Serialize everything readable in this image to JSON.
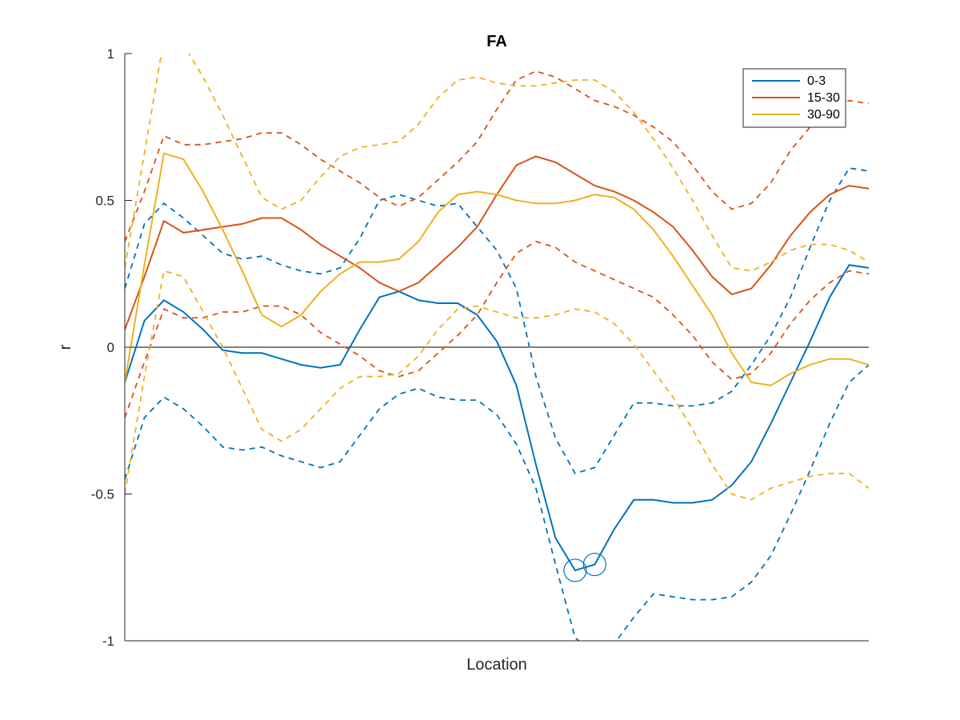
{
  "chart_data": {
    "type": "line",
    "title": "FA",
    "xlabel": "Location",
    "ylabel": "r",
    "ylim": [
      -1,
      1
    ],
    "yticks": [
      -1,
      -0.5,
      0,
      0.5,
      1
    ],
    "ytick_labels": [
      "-1",
      "-0.5",
      "0",
      "0.5",
      "1"
    ],
    "xlim": [
      1,
      39
    ],
    "show_xticks": false,
    "grid": false,
    "zero_line": true,
    "legend_position": "top-right",
    "x": [
      1,
      2,
      3,
      4,
      5,
      6,
      7,
      8,
      9,
      10,
      11,
      12,
      13,
      14,
      15,
      16,
      17,
      18,
      19,
      20,
      21,
      22,
      23,
      24,
      25,
      26,
      27,
      28,
      29,
      30,
      31,
      32,
      33,
      34,
      35,
      36,
      37,
      38,
      39
    ],
    "series": [
      {
        "name": "0-3",
        "color": "#0072BD",
        "values": [
          -0.12,
          0.09,
          0.16,
          0.12,
          0.06,
          -0.01,
          -0.02,
          -0.02,
          -0.04,
          -0.06,
          -0.07,
          -0.06,
          0.06,
          0.17,
          0.19,
          0.16,
          0.15,
          0.15,
          0.11,
          0.02,
          -0.13,
          -0.4,
          -0.65,
          -0.76,
          -0.74,
          -0.62,
          -0.52,
          -0.52,
          -0.53,
          -0.53,
          -0.52,
          -0.47,
          -0.39,
          -0.26,
          -0.12,
          0.02,
          0.17,
          0.28,
          0.27
        ],
        "lower": [
          -0.45,
          -0.24,
          -0.17,
          -0.21,
          -0.27,
          -0.34,
          -0.35,
          -0.34,
          -0.37,
          -0.39,
          -0.41,
          -0.39,
          -0.3,
          -0.21,
          -0.16,
          -0.14,
          -0.17,
          -0.18,
          -0.18,
          -0.23,
          -0.33,
          -0.48,
          -0.74,
          -0.99,
          -1.04,
          -1.01,
          -0.92,
          -0.84,
          -0.85,
          -0.86,
          -0.86,
          -0.85,
          -0.8,
          -0.71,
          -0.57,
          -0.42,
          -0.26,
          -0.12,
          -0.06
        ],
        "upper": [
          0.2,
          0.42,
          0.49,
          0.44,
          0.38,
          0.32,
          0.3,
          0.31,
          0.28,
          0.26,
          0.25,
          0.27,
          0.37,
          0.5,
          0.52,
          0.5,
          0.48,
          0.49,
          0.41,
          0.33,
          0.2,
          -0.1,
          -0.31,
          -0.43,
          -0.41,
          -0.3,
          -0.19,
          -0.19,
          -0.2,
          -0.2,
          -0.19,
          -0.15,
          -0.06,
          0.04,
          0.17,
          0.34,
          0.5,
          0.61,
          0.6
        ],
        "markers": [
          {
            "x": 24,
            "y": -0.76
          },
          {
            "x": 25,
            "y": -0.74
          }
        ]
      },
      {
        "name": "15-30",
        "color": "#D95319",
        "values": [
          0.06,
          0.24,
          0.43,
          0.39,
          0.4,
          0.41,
          0.42,
          0.44,
          0.44,
          0.4,
          0.35,
          0.31,
          0.27,
          0.22,
          0.19,
          0.22,
          0.28,
          0.34,
          0.41,
          0.52,
          0.62,
          0.65,
          0.63,
          0.59,
          0.55,
          0.53,
          0.5,
          0.46,
          0.41,
          0.33,
          0.24,
          0.18,
          0.2,
          0.28,
          0.38,
          0.46,
          0.52,
          0.55,
          0.54
        ],
        "lower": [
          -0.24,
          -0.05,
          0.13,
          0.1,
          0.1,
          0.12,
          0.12,
          0.14,
          0.14,
          0.11,
          0.05,
          0.01,
          -0.03,
          -0.08,
          -0.1,
          -0.08,
          -0.02,
          0.04,
          0.11,
          0.22,
          0.32,
          0.36,
          0.34,
          0.29,
          0.26,
          0.23,
          0.2,
          0.17,
          0.11,
          0.04,
          -0.05,
          -0.11,
          -0.09,
          -0.02,
          0.08,
          0.16,
          0.22,
          0.26,
          0.25
        ],
        "upper": [
          0.36,
          0.53,
          0.72,
          0.69,
          0.69,
          0.7,
          0.71,
          0.73,
          0.73,
          0.69,
          0.64,
          0.6,
          0.56,
          0.51,
          0.48,
          0.51,
          0.57,
          0.63,
          0.7,
          0.81,
          0.91,
          0.94,
          0.92,
          0.88,
          0.84,
          0.82,
          0.79,
          0.75,
          0.7,
          0.62,
          0.53,
          0.47,
          0.49,
          0.56,
          0.67,
          0.75,
          0.81,
          0.84,
          0.83
        ]
      },
      {
        "name": "30-90",
        "color": "#EDB120",
        "values": [
          -0.12,
          0.28,
          0.66,
          0.64,
          0.53,
          0.4,
          0.26,
          0.11,
          0.07,
          0.11,
          0.19,
          0.25,
          0.29,
          0.29,
          0.3,
          0.36,
          0.46,
          0.52,
          0.53,
          0.52,
          0.5,
          0.49,
          0.49,
          0.5,
          0.52,
          0.51,
          0.47,
          0.4,
          0.31,
          0.21,
          0.11,
          -0.02,
          -0.12,
          -0.13,
          -0.09,
          -0.06,
          -0.04,
          -0.04,
          -0.06
        ],
        "lower": [
          -0.5,
          -0.1,
          0.26,
          0.24,
          0.12,
          0.0,
          -0.14,
          -0.28,
          -0.32,
          -0.28,
          -0.21,
          -0.14,
          -0.1,
          -0.1,
          -0.09,
          -0.03,
          0.06,
          0.13,
          0.14,
          0.12,
          0.1,
          0.1,
          0.11,
          0.13,
          0.12,
          0.08,
          0.01,
          -0.08,
          -0.17,
          -0.28,
          -0.4,
          -0.5,
          -0.52,
          -0.48,
          -0.46,
          -0.44,
          -0.43,
          -0.43,
          -0.48
        ],
        "upper": [
          0.27,
          0.66,
          1.05,
          1.03,
          0.92,
          0.79,
          0.65,
          0.51,
          0.47,
          0.5,
          0.58,
          0.65,
          0.68,
          0.69,
          0.7,
          0.76,
          0.85,
          0.91,
          0.92,
          0.9,
          0.89,
          0.89,
          0.9,
          0.91,
          0.91,
          0.87,
          0.8,
          0.71,
          0.61,
          0.5,
          0.38,
          0.27,
          0.26,
          0.29,
          0.33,
          0.35,
          0.35,
          0.33,
          0.29
        ]
      }
    ]
  }
}
